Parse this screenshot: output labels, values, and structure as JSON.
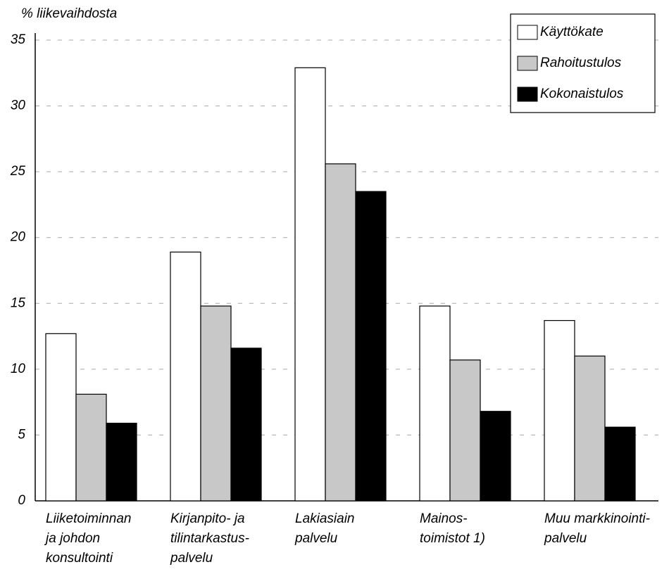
{
  "chart_data": {
    "type": "bar",
    "ylabel": "% liikevaihdosta",
    "categories": [
      [
        "Liiketoiminnan",
        "ja johdon",
        "konsultointi"
      ],
      [
        "Kirjanpito- ja",
        "tilintarkastus-",
        "palvelu"
      ],
      [
        "Lakiasiain",
        "palvelu"
      ],
      [
        "Mainos-",
        "toimistot 1)"
      ],
      [
        "Muu markkinointi-",
        "palvelu"
      ]
    ],
    "series": [
      {
        "name": "Käyttökate",
        "color": "#ffffff",
        "values": [
          12.7,
          18.9,
          32.9,
          14.8,
          13.7
        ]
      },
      {
        "name": "Rahoitustulos",
        "color": "#c8c8c8",
        "values": [
          8.1,
          14.8,
          25.6,
          10.7,
          11.0
        ]
      },
      {
        "name": "Kokonaistulos",
        "color": "#000000",
        "values": [
          5.9,
          11.6,
          23.5,
          6.8,
          5.6
        ]
      }
    ],
    "ylim": [
      0,
      35
    ],
    "yticks": [
      0,
      5,
      10,
      15,
      20,
      25,
      30,
      35
    ],
    "grid": true,
    "legend": "upper right"
  }
}
